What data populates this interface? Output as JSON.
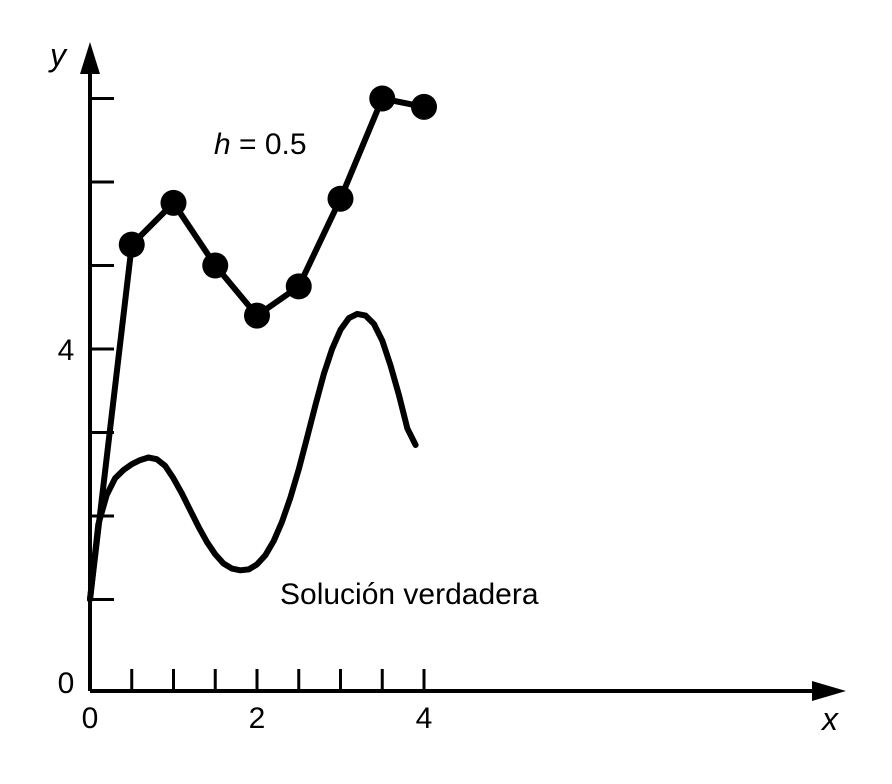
{
  "chart_data": {
    "type": "line",
    "title": "",
    "xlabel": "x",
    "ylabel": "y",
    "xlim": [
      0,
      4.4
    ],
    "ylim": [
      0,
      7.2
    ],
    "x_ticks": [
      0,
      0.5,
      1,
      1.5,
      2,
      2.5,
      3,
      3.5,
      4
    ],
    "x_tick_labels": [
      "0",
      "",
      "",
      "",
      "2",
      "",
      "",
      "",
      "4"
    ],
    "y_ticks": [
      0,
      1,
      2,
      3,
      4,
      5,
      6,
      7
    ],
    "y_tick_labels": [
      "0",
      "",
      "",
      "",
      "4",
      "",
      "",
      ""
    ],
    "grid": false,
    "series": [
      {
        "label": "h = 0.5",
        "markers": true,
        "x": [
          0,
          0.5,
          1.0,
          1.5,
          2.0,
          2.5,
          3.0,
          3.5,
          4.0
        ],
        "y": [
          1.0,
          5.25,
          5.75,
          5.0,
          4.4,
          4.75,
          5.8,
          7.0,
          6.9
        ]
      },
      {
        "label": "Solución verdadera",
        "markers": false,
        "x": [
          0,
          0.1,
          0.2,
          0.3,
          0.4,
          0.5,
          0.6,
          0.7,
          0.8,
          0.9,
          1.0,
          1.1,
          1.2,
          1.3,
          1.4,
          1.5,
          1.6,
          1.7,
          1.8,
          1.9,
          2.0,
          2.1,
          2.2,
          2.3,
          2.4,
          2.5,
          2.6,
          2.7,
          2.8,
          2.9,
          3.0,
          3.1,
          3.2,
          3.3,
          3.4,
          3.5,
          3.6,
          3.7,
          3.8,
          3.9
        ],
        "y": [
          1.0,
          1.9,
          2.25,
          2.45,
          2.55,
          2.62,
          2.67,
          2.7,
          2.68,
          2.6,
          2.45,
          2.27,
          2.07,
          1.87,
          1.69,
          1.54,
          1.43,
          1.37,
          1.35,
          1.36,
          1.42,
          1.53,
          1.7,
          1.93,
          2.22,
          2.56,
          2.94,
          3.33,
          3.7,
          4.0,
          4.23,
          4.37,
          4.42,
          4.4,
          4.3,
          4.1,
          3.8,
          3.45,
          3.05,
          2.85
        ]
      }
    ],
    "annotations": [
      {
        "text_main": "h",
        "text_rest": " = 0.5",
        "near_series": 0
      },
      {
        "text": "Solución verdadera",
        "near_series": 1
      }
    ]
  }
}
